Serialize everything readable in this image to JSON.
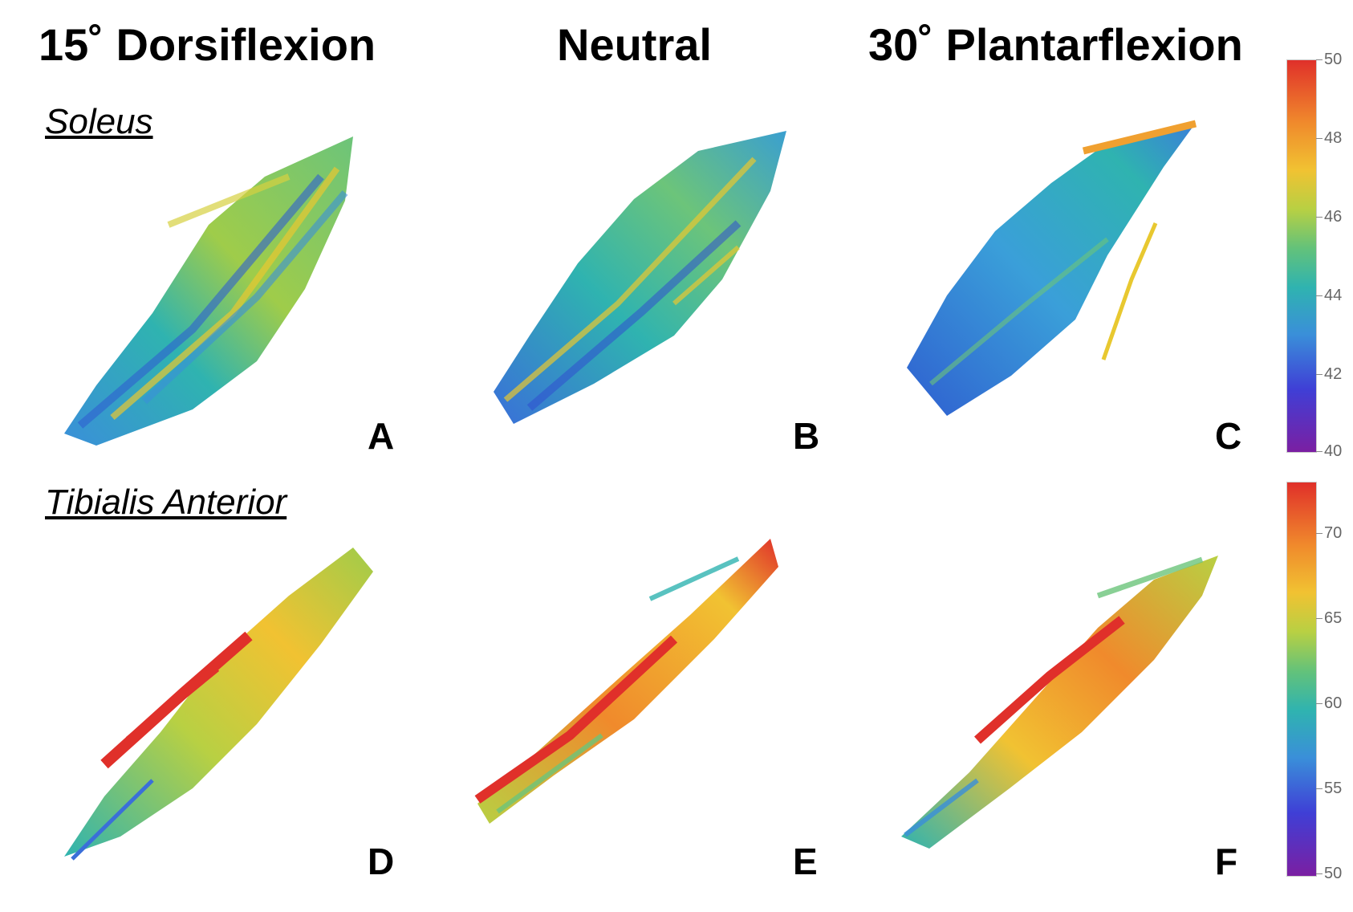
{
  "columns": [
    "15˚ Dorsiflexion",
    "Neutral",
    "30˚ Plantarflexion"
  ],
  "rows": [
    "Soleus",
    "Tibialis Anterior"
  ],
  "panels": [
    "A",
    "B",
    "C",
    "D",
    "E",
    "F"
  ],
  "colorbars": {
    "soleus": {
      "min": 40,
      "max": 50,
      "ticks": [
        "50",
        "48",
        "46",
        "44",
        "42",
        "40"
      ]
    },
    "tibialis": {
      "min": 50,
      "max": 73,
      "ticks": [
        "70",
        "65",
        "60",
        "55",
        "50"
      ]
    }
  },
  "colors": {
    "purple": "#7b1fa2",
    "blue": "#3a5fd9",
    "cyan": "#2fb3c0",
    "green": "#6cc47a",
    "yellow": "#e8c830",
    "orange": "#f08a2c",
    "red": "#e0302a"
  }
}
